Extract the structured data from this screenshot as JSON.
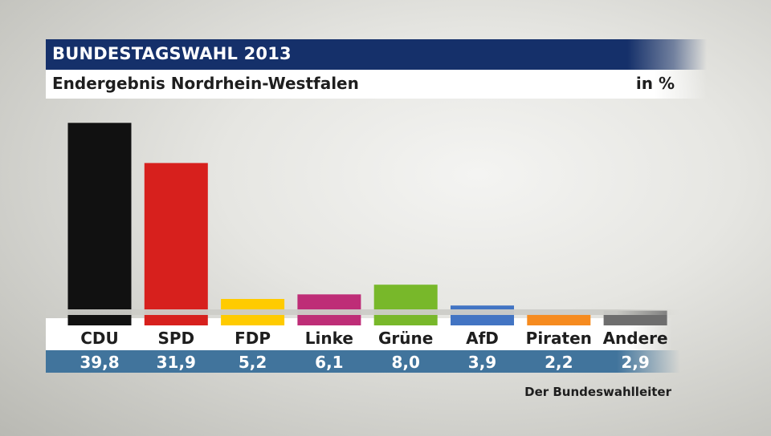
{
  "chart_data": {
    "type": "bar",
    "title": "BUNDESTAGSWAHL 2013",
    "subtitle": "Endergebnis Nordrhein-Westfalen",
    "unit": "in %",
    "categories": [
      "CDU",
      "SPD",
      "FDP",
      "Linke",
      "Grüne",
      "AfD",
      "Piraten",
      "Andere"
    ],
    "values": [
      39.8,
      31.9,
      5.2,
      6.1,
      8.0,
      3.9,
      2.2,
      2.9
    ],
    "value_labels": [
      "39,8",
      "31,9",
      "5,2",
      "6,1",
      "8,0",
      "3,9",
      "2,2",
      "2,9"
    ],
    "colors": [
      "#111111",
      "#d7201d",
      "#ffcb00",
      "#be2d77",
      "#78b82a",
      "#4274c3",
      "#f68b1f",
      "#6e6e6e"
    ],
    "ylim": [
      0,
      40
    ],
    "xlabel": "",
    "ylabel": "",
    "source": "Der Bundeswahlleiter"
  }
}
